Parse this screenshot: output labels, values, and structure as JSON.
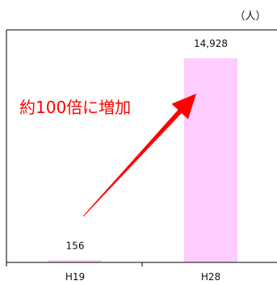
{
  "chart_data": {
    "type": "bar",
    "categories": [
      "H19",
      "H28"
    ],
    "values": [
      156,
      14928
    ],
    "value_labels": [
      "156",
      "14,928"
    ],
    "unit": "（人）",
    "annotation": "約100倍に増加",
    "ylim": [
      0,
      17000
    ],
    "grid": false,
    "legend": "none",
    "bar_color": "#ffccff",
    "annotation_color": "#ff0000",
    "arrow_color": "#ff0000",
    "axis_color": "#000000"
  }
}
